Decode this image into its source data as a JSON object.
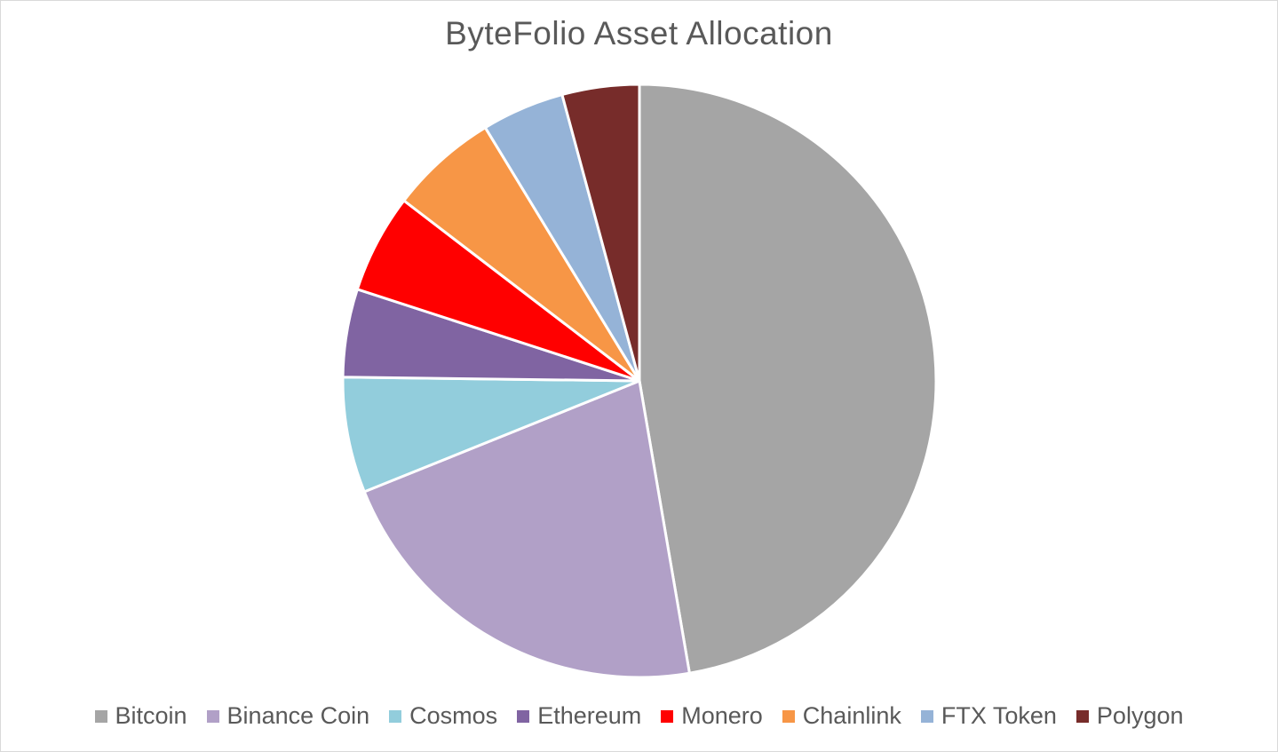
{
  "chart_data": {
    "type": "pie",
    "title": "ByteFolio Asset Allocation",
    "categories": [
      "Bitcoin",
      "Binance Coin",
      "Cosmos",
      "Ethereum",
      "Monero",
      "Chainlink",
      "FTX Token",
      "Polygon"
    ],
    "values": [
      47.3,
      21.6,
      6.3,
      4.8,
      5.4,
      5.9,
      4.5,
      4.2
    ],
    "colors": [
      "#a5a5a5",
      "#b1a0c7",
      "#92cddc",
      "#8064a2",
      "#ff0000",
      "#f79646",
      "#95b3d7",
      "#772c2a"
    ],
    "legend": "bottom",
    "start_angle": "12 o'clock",
    "direction": "clockwise"
  }
}
